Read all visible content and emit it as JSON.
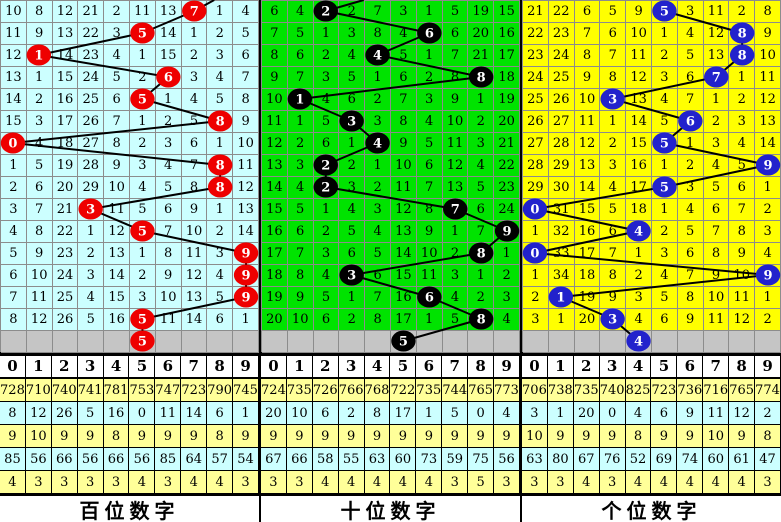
{
  "chart_data": {
    "type": "table",
    "title": "3D彩票走势图 (lottery digit trend chart)",
    "line_color": "#000000",
    "gray_row_color": "#C5C5C5",
    "grid_line_color": "#8c8c8c",
    "digits_header": [
      "0",
      "1",
      "2",
      "3",
      "4",
      "5",
      "6",
      "7",
      "8",
      "9"
    ],
    "stat_row_colors": [
      "#FFFF99",
      "#CCFFFF",
      "#FFFF99",
      "#CCFFFF",
      "#FFFF99"
    ],
    "panels": [
      {
        "key": "hundreds",
        "footer": "百位数字",
        "bg": "#CCFFFF",
        "ball_color": "#EE0000",
        "rows": [
          [
            10,
            8,
            12,
            21,
            2,
            11,
            13,
            7,
            1,
            4
          ],
          [
            11,
            9,
            13,
            22,
            3,
            5,
            14,
            1,
            2,
            5
          ],
          [
            12,
            1,
            14,
            23,
            4,
            1,
            15,
            2,
            3,
            6
          ],
          [
            13,
            1,
            15,
            24,
            5,
            2,
            6,
            3,
            4,
            7
          ],
          [
            14,
            2,
            16,
            25,
            6,
            5,
            1,
            4,
            5,
            8
          ],
          [
            15,
            3,
            17,
            26,
            7,
            1,
            2,
            5,
            8,
            9
          ],
          [
            0,
            4,
            18,
            27,
            8,
            2,
            3,
            6,
            1,
            10
          ],
          [
            1,
            5,
            19,
            28,
            9,
            3,
            4,
            7,
            8,
            11
          ],
          [
            2,
            6,
            20,
            29,
            10,
            4,
            5,
            8,
            8,
            12
          ],
          [
            3,
            7,
            21,
            3,
            11,
            5,
            6,
            9,
            1,
            13
          ],
          [
            4,
            8,
            22,
            1,
            12,
            5,
            7,
            10,
            2,
            14
          ],
          [
            5,
            9,
            23,
            2,
            13,
            1,
            8,
            11,
            3,
            9
          ],
          [
            6,
            10,
            24,
            3,
            14,
            2,
            9,
            12,
            4,
            9
          ],
          [
            7,
            11,
            25,
            4,
            15,
            3,
            10,
            13,
            5,
            9
          ],
          [
            8,
            12,
            26,
            5,
            16,
            5,
            11,
            14,
            6,
            1
          ]
        ],
        "ball_cols": [
          7,
          5,
          1,
          6,
          5,
          8,
          0,
          8,
          8,
          3,
          5,
          9,
          9,
          9,
          5
        ],
        "tail_ball_col": 5,
        "top_stub_dx": 20,
        "stats": [
          [
            728,
            710,
            740,
            741,
            781,
            753,
            747,
            723,
            790,
            745
          ],
          [
            8,
            12,
            26,
            5,
            16,
            0,
            11,
            14,
            6,
            1
          ],
          [
            9,
            10,
            9,
            9,
            8,
            9,
            9,
            9,
            8,
            9
          ],
          [
            85,
            56,
            66,
            56,
            66,
            56,
            85,
            64,
            57,
            54
          ],
          [
            4,
            3,
            3,
            3,
            3,
            4,
            3,
            4,
            4,
            3
          ]
        ]
      },
      {
        "key": "tens",
        "footer": "十位数字",
        "bg": "#00E300",
        "ball_color": "#000000",
        "rows": [
          [
            6,
            4,
            2,
            2,
            7,
            3,
            1,
            5,
            19,
            15
          ],
          [
            7,
            5,
            1,
            3,
            8,
            4,
            6,
            6,
            20,
            16
          ],
          [
            8,
            6,
            2,
            4,
            4,
            5,
            1,
            7,
            21,
            17
          ],
          [
            9,
            7,
            3,
            5,
            1,
            6,
            2,
            8,
            8,
            18
          ],
          [
            10,
            1,
            4,
            6,
            2,
            7,
            3,
            9,
            1,
            19
          ],
          [
            11,
            1,
            5,
            3,
            3,
            8,
            4,
            10,
            2,
            20
          ],
          [
            12,
            2,
            6,
            1,
            4,
            9,
            5,
            11,
            3,
            21
          ],
          [
            13,
            3,
            2,
            2,
            1,
            10,
            6,
            12,
            4,
            22
          ],
          [
            14,
            4,
            2,
            3,
            2,
            11,
            7,
            13,
            5,
            23
          ],
          [
            15,
            5,
            1,
            4,
            3,
            12,
            8,
            7,
            6,
            24
          ],
          [
            16,
            6,
            2,
            5,
            4,
            13,
            9,
            1,
            7,
            9
          ],
          [
            17,
            7,
            3,
            6,
            5,
            14,
            10,
            2,
            8,
            1
          ],
          [
            18,
            8,
            4,
            3,
            6,
            15,
            11,
            3,
            1,
            2
          ],
          [
            19,
            9,
            5,
            1,
            7,
            16,
            6,
            4,
            2,
            3
          ],
          [
            20,
            10,
            6,
            2,
            8,
            17,
            1,
            5,
            8,
            4
          ]
        ],
        "ball_cols": [
          2,
          6,
          4,
          8,
          1,
          3,
          4,
          2,
          2,
          7,
          9,
          8,
          3,
          6,
          8
        ],
        "tail_ball_col": 5,
        "top_stub_dx": 38,
        "stats": [
          [
            724,
            735,
            726,
            766,
            768,
            722,
            735,
            744,
            765,
            773
          ],
          [
            20,
            10,
            6,
            2,
            8,
            17,
            1,
            5,
            0,
            4
          ],
          [
            9,
            9,
            9,
            9,
            9,
            9,
            9,
            9,
            9,
            9
          ],
          [
            67,
            66,
            58,
            55,
            63,
            60,
            73,
            59,
            75,
            56
          ],
          [
            3,
            3,
            4,
            4,
            4,
            4,
            4,
            3,
            5,
            3
          ]
        ]
      },
      {
        "key": "units",
        "footer": "个位数字",
        "bg": "#FFFF00",
        "ball_color": "#2222CC",
        "rows": [
          [
            21,
            22,
            6,
            5,
            9,
            5,
            3,
            11,
            2,
            8
          ],
          [
            22,
            23,
            7,
            6,
            10,
            1,
            4,
            12,
            8,
            9
          ],
          [
            23,
            24,
            8,
            7,
            11,
            2,
            5,
            13,
            8,
            10
          ],
          [
            24,
            25,
            9,
            8,
            12,
            3,
            6,
            7,
            1,
            11
          ],
          [
            25,
            26,
            10,
            3,
            13,
            4,
            7,
            1,
            2,
            12
          ],
          [
            26,
            27,
            11,
            1,
            14,
            5,
            6,
            2,
            3,
            13
          ],
          [
            27,
            28,
            12,
            2,
            15,
            5,
            1,
            3,
            4,
            14
          ],
          [
            28,
            29,
            13,
            3,
            16,
            1,
            2,
            4,
            5,
            9
          ],
          [
            29,
            30,
            14,
            4,
            17,
            5,
            3,
            5,
            6,
            1
          ],
          [
            0,
            31,
            15,
            5,
            18,
            1,
            4,
            6,
            7,
            2
          ],
          [
            1,
            32,
            16,
            6,
            4,
            2,
            5,
            7,
            8,
            3
          ],
          [
            0,
            33,
            17,
            7,
            1,
            3,
            6,
            8,
            9,
            4
          ],
          [
            1,
            34,
            18,
            8,
            2,
            4,
            7,
            9,
            10,
            9
          ],
          [
            2,
            1,
            19,
            9,
            3,
            5,
            8,
            10,
            11,
            1
          ],
          [
            3,
            1,
            20,
            3,
            4,
            6,
            9,
            11,
            12,
            2
          ]
        ],
        "ball_cols": [
          5,
          8,
          8,
          7,
          3,
          6,
          5,
          9,
          5,
          0,
          4,
          0,
          9,
          1,
          3
        ],
        "tail_ball_col": 4,
        "top_stub_dx": null,
        "stats": [
          [
            706,
            738,
            735,
            740,
            825,
            723,
            736,
            716,
            765,
            774
          ],
          [
            3,
            1,
            20,
            0,
            4,
            6,
            9,
            11,
            12,
            2
          ],
          [
            10,
            9,
            9,
            9,
            8,
            9,
            9,
            10,
            9,
            8
          ],
          [
            63,
            80,
            67,
            76,
            52,
            69,
            74,
            60,
            61,
            47
          ],
          [
            3,
            3,
            4,
            3,
            4,
            4,
            4,
            4,
            4,
            3
          ]
        ]
      }
    ]
  }
}
